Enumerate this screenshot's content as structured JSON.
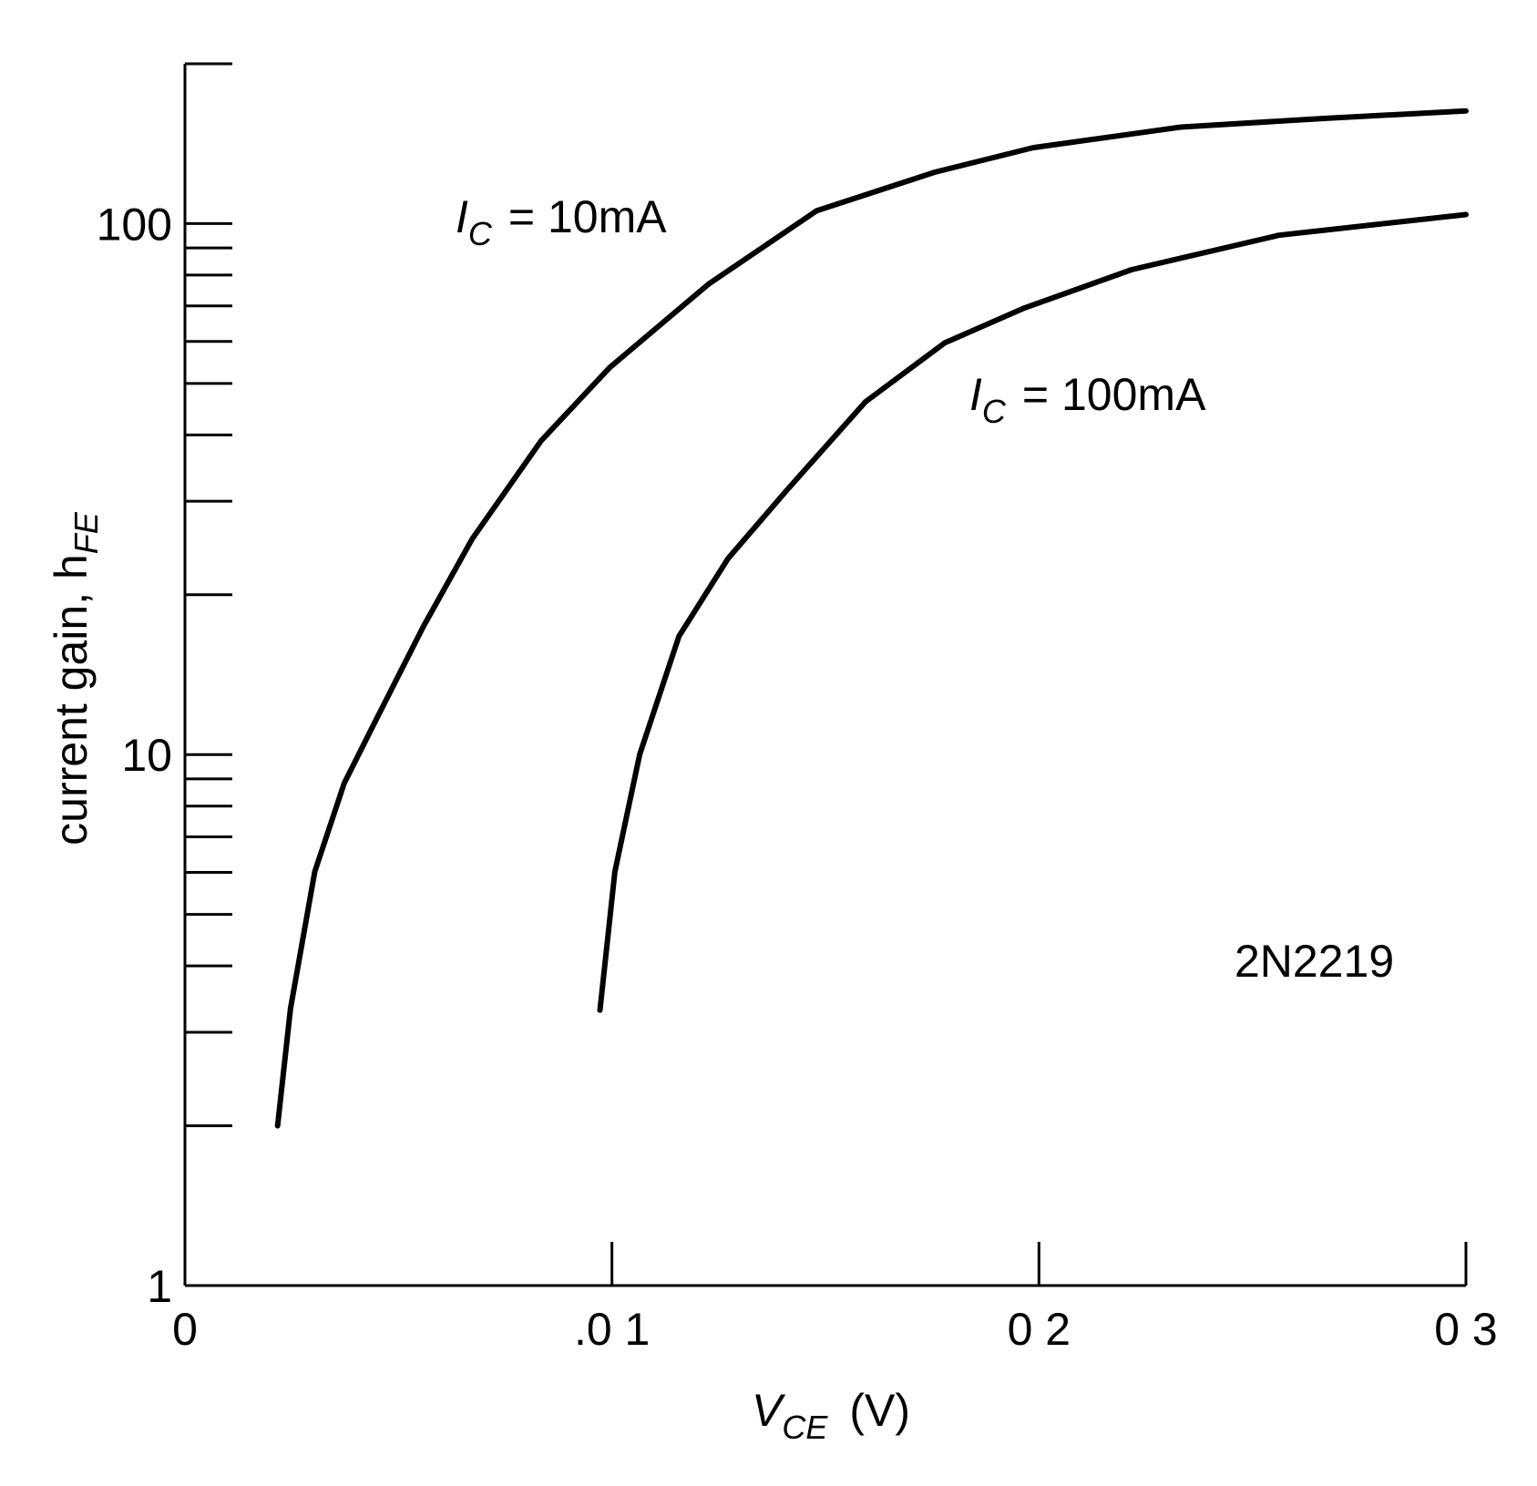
{
  "chart_data": {
    "type": "line",
    "y_label": {
      "text": "current gain, h",
      "subscript": "FE"
    },
    "x_label": {
      "symbol": "V",
      "subscript": "CE",
      "unit": "(V)"
    },
    "annotations": [
      {
        "symbol": "I",
        "subscript": "C",
        "text": "= 10mA"
      },
      {
        "symbol": "I",
        "subscript": "C",
        "text": "= 100mA"
      },
      {
        "text": "2N2219"
      }
    ],
    "series": [
      {
        "color": "#000000",
        "x": [
          0.0217,
          0.0247,
          0.0304,
          0.0373,
          0.0442,
          0.0558,
          0.0673,
          0.0834,
          0.0995,
          0.1226,
          0.1479,
          0.1756,
          0.1986,
          0.2332,
          0.2677,
          0.3
        ],
        "values": [
          2.0,
          3.32,
          6.02,
          8.83,
          11.4,
          17.4,
          25.5,
          39.0,
          53.6,
          76.9,
          105.7,
          125,
          139,
          152,
          158,
          163
        ]
      },
      {
        "color": "#000000",
        "x": [
          0.0972,
          0.1007,
          0.1065,
          0.1157,
          0.1272,
          0.141,
          0.1594,
          0.1779,
          0.1963,
          0.2217,
          0.2562,
          0.3
        ],
        "values": [
          3.3,
          6.02,
          10.0,
          16.7,
          23.4,
          31.5,
          46.2,
          59.6,
          69.2,
          81.9,
          95.1,
          104
        ]
      }
    ],
    "xlim": [
      0,
      0.3
    ],
    "xticks": [
      0,
      {
        "value": 0.1,
        "label": ".0 1"
      },
      {
        "value": 0.2,
        "label": "0 2"
      },
      {
        "value": 0.3,
        "label": "0 3"
      }
    ],
    "ylim": [
      1,
      200
    ],
    "yscale": "log",
    "yticks": [
      1,
      10,
      100
    ],
    "yminorticks": [
      2,
      3,
      4,
      5,
      6,
      7,
      8,
      9,
      20,
      30,
      40,
      50,
      60,
      70,
      80,
      90,
      200
    ]
  }
}
